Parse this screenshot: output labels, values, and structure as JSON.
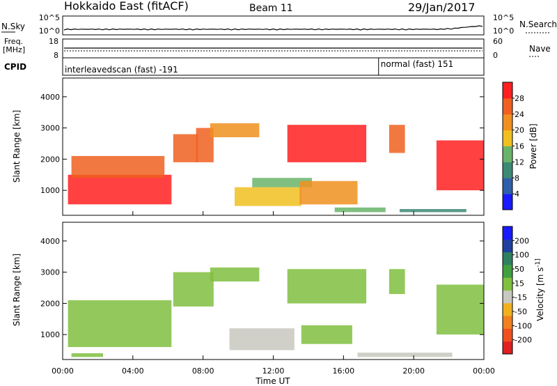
{
  "header": {
    "title": "Hokkaido East (fitACF)",
    "beam": "Beam 11",
    "date": "29/Jan/2017"
  },
  "noise_panel": {
    "left_label": "N.Sky",
    "left_ticks": [
      "10^5",
      "10^0"
    ],
    "right_ticks": [
      "10^5",
      "10^0"
    ],
    "right_label": "N.Search"
  },
  "freq_panel": {
    "label_line1": "Freq.",
    "label_line2": "[MHz]",
    "left_ticks": [
      "18",
      "8"
    ],
    "right_ticks": [
      "60",
      "0"
    ],
    "right_label": "Nave"
  },
  "cpid_panel": {
    "label": "CPID",
    "segments": [
      {
        "text": "interleavedscan (fast) -191",
        "start_hour": 0
      },
      {
        "text": "normal (fast) 151",
        "start_hour": 18
      }
    ]
  },
  "colors": {
    "power_scale": [
      "#1a1aff",
      "#2f5fa8",
      "#3d8a74",
      "#6ab46a",
      "#f0c020",
      "#f09020",
      "#f06020",
      "#ff2020"
    ],
    "velocity_scale": [
      "#e02020",
      "#f05020",
      "#f08020",
      "#f0b020",
      "#c8c8c0",
      "#80c040",
      "#40a040",
      "#2f8060",
      "#2040a0",
      "#1a1aff"
    ],
    "velocity_gray": "#c6c6bf"
  },
  "chart_data": [
    {
      "type": "heatmap",
      "name": "power",
      "ylabel": "Slant Range [km]",
      "yticks": [
        "1000",
        "2000",
        "3000",
        "4000"
      ],
      "ylim": [
        200,
        4600
      ],
      "xlim": [
        0,
        24
      ],
      "colorbar": {
        "title": "Power [dB]",
        "ticks": [
          "28",
          "24",
          "20",
          "16",
          "12",
          "8",
          "4"
        ],
        "range": [
          0,
          30
        ]
      },
      "regions": [
        {
          "t0": 0.3,
          "t1": 6.2,
          "r0": 550,
          "r1": 1500,
          "value": 28
        },
        {
          "t0": 0.5,
          "t1": 5.8,
          "r0": 1400,
          "r1": 2100,
          "value": 24
        },
        {
          "t0": 6.3,
          "t1": 7.7,
          "r0": 1900,
          "r1": 2800,
          "value": 27
        },
        {
          "t0": 7.6,
          "t1": 8.6,
          "r0": 1900,
          "r1": 3000,
          "value": 26
        },
        {
          "t0": 8.4,
          "t1": 11.2,
          "r0": 2700,
          "r1": 3150,
          "value": 21
        },
        {
          "t0": 9.8,
          "t1": 13.6,
          "r0": 500,
          "r1": 1100,
          "value": 18
        },
        {
          "t0": 10.8,
          "t1": 14.2,
          "r0": 1100,
          "r1": 1400,
          "value": 13
        },
        {
          "t0": 12.8,
          "t1": 17.3,
          "r0": 1900,
          "r1": 3100,
          "value": 28
        },
        {
          "t0": 13.5,
          "t1": 16.8,
          "r0": 550,
          "r1": 1300,
          "value": 22
        },
        {
          "t0": 15.5,
          "t1": 18.4,
          "r0": 300,
          "r1": 450,
          "value": 12
        },
        {
          "t0": 18.6,
          "t1": 19.5,
          "r0": 2200,
          "r1": 3100,
          "value": 26
        },
        {
          "t0": 19.2,
          "t1": 23.0,
          "r0": 300,
          "r1": 400,
          "value": 10
        },
        {
          "t0": 21.3,
          "t1": 24.0,
          "r0": 1000,
          "r1": 2600,
          "value": 28
        }
      ]
    },
    {
      "type": "heatmap",
      "name": "velocity",
      "ylabel": "Slant Range [km]",
      "yticks": [
        "1000",
        "2000",
        "3000",
        "4000"
      ],
      "ylim": [
        200,
        4600
      ],
      "xlim": [
        0,
        24
      ],
      "xlabel": "Time UT",
      "xticks": [
        "00:00",
        "04:00",
        "08:00",
        "12:00",
        "16:00",
        "20:00",
        "00:00"
      ],
      "colorbar": {
        "title": "Velocity [m s^-1]",
        "ticks": [
          "200",
          "100",
          "50",
          "15",
          "-15",
          "-50",
          "-100",
          "-200"
        ],
        "range": [
          -250,
          250
        ]
      },
      "regions": [
        {
          "t0": 0.3,
          "t1": 6.2,
          "r0": 600,
          "r1": 2100,
          "value": 0
        },
        {
          "t0": 6.3,
          "t1": 8.6,
          "r0": 1900,
          "r1": 3000,
          "value": 0
        },
        {
          "t0": 8.4,
          "t1": 11.2,
          "r0": 2700,
          "r1": 3150,
          "value": 0
        },
        {
          "t0": 9.5,
          "t1": 13.2,
          "r0": 500,
          "r1": 1200,
          "value": -40
        },
        {
          "t0": 12.8,
          "t1": 17.3,
          "r0": 2000,
          "r1": 3100,
          "value": 0
        },
        {
          "t0": 13.6,
          "t1": 16.5,
          "r0": 700,
          "r1": 1300,
          "value": 30
        },
        {
          "t0": 0.5,
          "t1": 2.3,
          "r0": 280,
          "r1": 400,
          "value": 30
        },
        {
          "t0": 16.8,
          "t1": 22.2,
          "r0": 280,
          "r1": 420,
          "value": -40
        },
        {
          "t0": 18.6,
          "t1": 19.5,
          "r0": 2300,
          "r1": 3100,
          "value": 0
        },
        {
          "t0": 21.3,
          "t1": 24.0,
          "r0": 1000,
          "r1": 2600,
          "value": 0
        }
      ]
    }
  ]
}
